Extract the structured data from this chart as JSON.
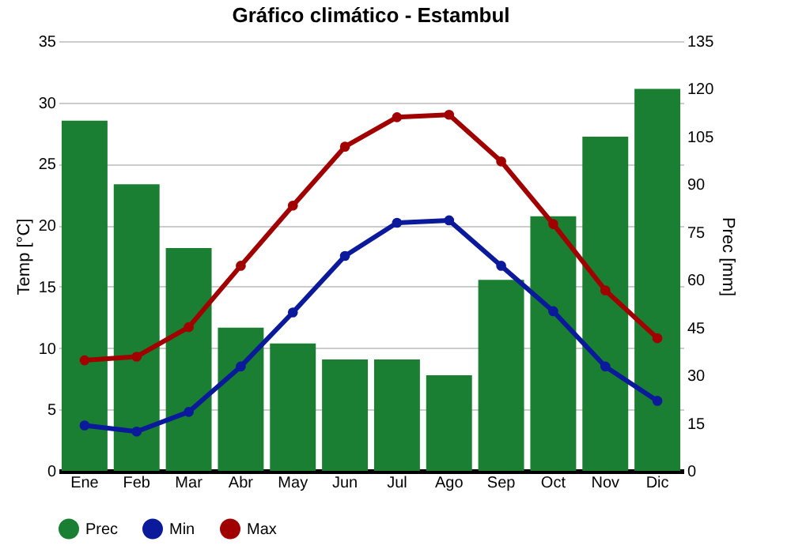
{
  "chart_data": {
    "type": "line",
    "title": "Gráfico climático - Estambul",
    "ylabel": "Temp [°C]",
    "y2label": "Prec [mm]",
    "categories": [
      "Ene",
      "Feb",
      "Mar",
      "Abr",
      "May",
      "Jun",
      "Jul",
      "Ago",
      "Sep",
      "Oct",
      "Nov",
      "Dic"
    ],
    "series": [
      {
        "name": "Prec",
        "type": "bar",
        "axis": "y2",
        "color": "#1a7f32",
        "values": [
          110,
          90,
          70,
          45,
          40,
          35,
          35,
          30,
          60,
          80,
          105,
          120
        ]
      },
      {
        "name": "Min",
        "color": "#0a1a9a",
        "values": [
          3.7,
          3.2,
          4.8,
          8.5,
          12.9,
          17.5,
          20.2,
          20.4,
          16.7,
          13,
          8.5,
          5.7
        ]
      },
      {
        "name": "Max",
        "color": "#a00000",
        "values": [
          9.0,
          9.3,
          11.7,
          16.7,
          21.6,
          26.4,
          28.8,
          29.0,
          25.2,
          20.1,
          14.7,
          10.8
        ]
      }
    ],
    "ylim": [
      0,
      35
    ],
    "yticks": [
      0,
      5,
      10,
      15,
      20,
      25,
      30,
      35
    ],
    "y2lim": [
      0,
      135
    ],
    "y2ticks": [
      0,
      15,
      30,
      45,
      60,
      75,
      90,
      105,
      120,
      135
    ],
    "grid": "y",
    "legend": "bottom",
    "marker": "circle",
    "line_style": "solid"
  }
}
